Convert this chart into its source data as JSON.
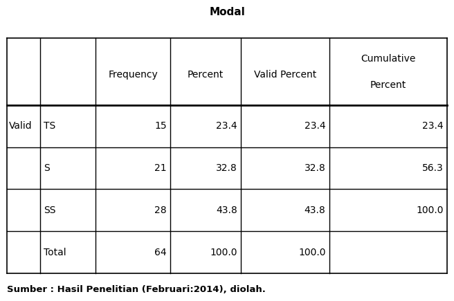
{
  "title": "Modal",
  "footer": "Sumber : Hasil Penelitian (Februari:2014), diolah.",
  "bg_color": "#ffffff",
  "line_color": "#000000",
  "col0_labels": [
    "Valid",
    "",
    "",
    ""
  ],
  "col1_labels": [
    "TS",
    "S",
    "SS",
    "Total"
  ],
  "data_cols": [
    [
      "15",
      "23.4",
      "23.4",
      "23.4"
    ],
    [
      "21",
      "32.8",
      "32.8",
      "56.3"
    ],
    [
      "28",
      "43.8",
      "43.8",
      "100.0"
    ],
    [
      "64",
      "100.0",
      "100.0",
      ""
    ]
  ],
  "header_line1": [
    "",
    "",
    "Frequency",
    "Percent",
    "Valid Percent",
    "Cumulative"
  ],
  "header_line2": [
    "",
    "",
    "",
    "",
    "",
    "Percent"
  ],
  "title_fontsize": 11,
  "body_fontsize": 10,
  "footer_fontsize": 9
}
